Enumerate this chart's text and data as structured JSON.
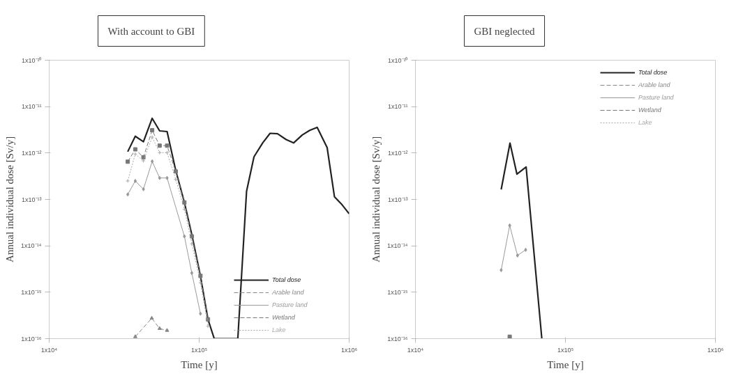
{
  "chart_data": [
    {
      "type": "line",
      "title": "With account to GBI",
      "xlabel": "Time [y]",
      "ylabel": "Annual individual dose [Sv/y]",
      "log": "xy",
      "grid": false,
      "legend": "bottom right",
      "marker": "none",
      "xlim": [
        10000,
        1000000
      ],
      "ylim": [
        1e-16,
        1e-10
      ],
      "xticks": [
        {
          "value": 10000,
          "label": "1x10⁴"
        },
        {
          "value": 100000,
          "label": "1x10⁵"
        },
        {
          "value": 1000000,
          "label": "1x10⁶"
        }
      ],
      "yticks": [
        {
          "value": 1e-16,
          "label": "1x10⁻¹⁶"
        },
        {
          "value": 1e-15,
          "label": "1x10⁻¹⁵"
        },
        {
          "value": 1e-14,
          "label": "1x10⁻¹⁴"
        },
        {
          "value": 1e-13,
          "label": "1x10⁻¹³"
        },
        {
          "value": 1e-12,
          "label": "1x10⁻¹²"
        },
        {
          "value": 1e-11,
          "label": "1x10⁻¹¹"
        },
        {
          "value": 1e-10,
          "label": "1x10⁻¹⁰"
        }
      ],
      "series": [
        {
          "name": "Total dose",
          "color": "#222222",
          "line_style": "solid",
          "x": [
            33400,
            37500,
            42500,
            48600,
            54500,
            61100,
            69800,
            79700,
            89300,
            102000,
            114500,
            126000,
            181000,
            207000,
            232000,
            265000,
            297000,
            333000,
            380000,
            426000,
            487000,
            546000,
            612000,
            713000,
            798000,
            896000,
            1000000
          ],
          "values": [
            1.07e-12,
            2.3e-12,
            1.75e-12,
            5.6e-12,
            3e-12,
            2.9e-12,
            4.2e-13,
            8.6e-14,
            1.75e-14,
            2.25e-15,
            2.6e-16,
            1e-16,
            1e-16,
            1.5e-13,
            8.3e-13,
            1.65e-12,
            2.66e-12,
            2.6e-12,
            1.95e-12,
            1.65e-12,
            2.45e-12,
            3.08e-12,
            3.57e-12,
            1.31e-12,
            1.14e-13,
            7.7e-14,
            4.9e-14
          ]
        },
        {
          "name": "Arable land",
          "color": "#888888",
          "line_style": "dashed",
          "marker": "triangle",
          "x": [
            37500,
            48300,
            54500,
            61100
          ],
          "values": [
            1.1e-16,
            2.75e-16,
            1.65e-16,
            1.5e-16
          ]
        },
        {
          "name": "Pasture land",
          "color": "#999999",
          "line_style": "solid",
          "marker": "diamond",
          "x": [
            33400,
            37500,
            42500,
            48600,
            54500,
            61100,
            79700,
            89300,
            102000
          ],
          "values": [
            1.28e-13,
            2.5e-13,
            1.66e-13,
            6.6e-13,
            2.9e-13,
            2.9e-13,
            1.6e-14,
            2.6e-15,
            3.45e-16
          ]
        },
        {
          "name": "Wetland",
          "color": "#777777",
          "line_style": "dashed",
          "marker": "square",
          "x": [
            33400,
            37500,
            42500,
            48600,
            54500,
            61100,
            69800,
            79700,
            89300,
            102000,
            114500
          ],
          "values": [
            6.5e-13,
            1.2e-12,
            8.1e-13,
            3.1e-12,
            1.44e-12,
            1.44e-12,
            4e-13,
            8.6e-14,
            1.6e-14,
            2.25e-15,
            2.6e-16
          ]
        },
        {
          "name": "Lake",
          "color": "#aaaaaa",
          "line_style": "dotted",
          "marker": "cross",
          "x": [
            33400,
            37500,
            42500,
            48600,
            54500,
            61100,
            69800,
            79700,
            89300,
            102000,
            114500
          ],
          "values": [
            2.5e-13,
            9.5e-13,
            6.8e-13,
            2.2e-12,
            1.02e-12,
            1.02e-12,
            2.7e-13,
            6.1e-14,
            1.1e-14,
            1.6e-15,
            1.85e-16
          ]
        }
      ]
    },
    {
      "type": "line",
      "title": "GBI neglected",
      "xlabel": "Time [y]",
      "ylabel": "Annual individual dose [Sv/y]",
      "log": "xy",
      "grid": false,
      "legend": "top right",
      "marker": "none",
      "xlim": [
        10000,
        1000000
      ],
      "ylim": [
        1e-16,
        1e-10
      ],
      "xticks": [
        {
          "value": 10000,
          "label": "1x10⁴"
        },
        {
          "value": 100000,
          "label": "1x10⁵"
        },
        {
          "value": 1000000,
          "label": "1x10⁶"
        }
      ],
      "yticks": [
        {
          "value": 1e-16,
          "label": "1x10⁻¹⁶"
        },
        {
          "value": 1e-15,
          "label": "1x10⁻¹⁵"
        },
        {
          "value": 1e-14,
          "label": "1x10⁻¹⁴"
        },
        {
          "value": 1e-13,
          "label": "1x10⁻¹³"
        },
        {
          "value": 1e-12,
          "label": "1x10⁻¹²"
        },
        {
          "value": 1e-11,
          "label": "1x10⁻¹¹"
        },
        {
          "value": 1e-10,
          "label": "1x10⁻¹⁰"
        }
      ],
      "series": [
        {
          "name": "Total dose",
          "color": "#222222",
          "line_style": "solid",
          "x": [
            37300,
            42700,
            47500,
            54700,
            69600
          ],
          "values": [
            1.64e-13,
            1.64e-12,
            3.5e-13,
            5e-13,
            1e-16
          ]
        },
        {
          "name": "Arable land",
          "color": "#888888",
          "line_style": "dashed",
          "marker": "triangle"
        },
        {
          "name": "Pasture land",
          "color": "#999999",
          "line_style": "solid",
          "marker": "diamond",
          "x": [
            37300,
            42500,
            47900,
            54300
          ],
          "values": [
            3e-15,
            2.75e-14,
            6.2e-15,
            8.2e-15
          ]
        },
        {
          "name": "Wetland",
          "color": "#777777",
          "line_style": "dashed",
          "marker": "square",
          "x": [
            42500
          ],
          "values": [
            1.1e-16
          ]
        },
        {
          "name": "Lake",
          "color": "#aaaaaa",
          "line_style": "dotted",
          "marker": "cross"
        }
      ]
    }
  ]
}
